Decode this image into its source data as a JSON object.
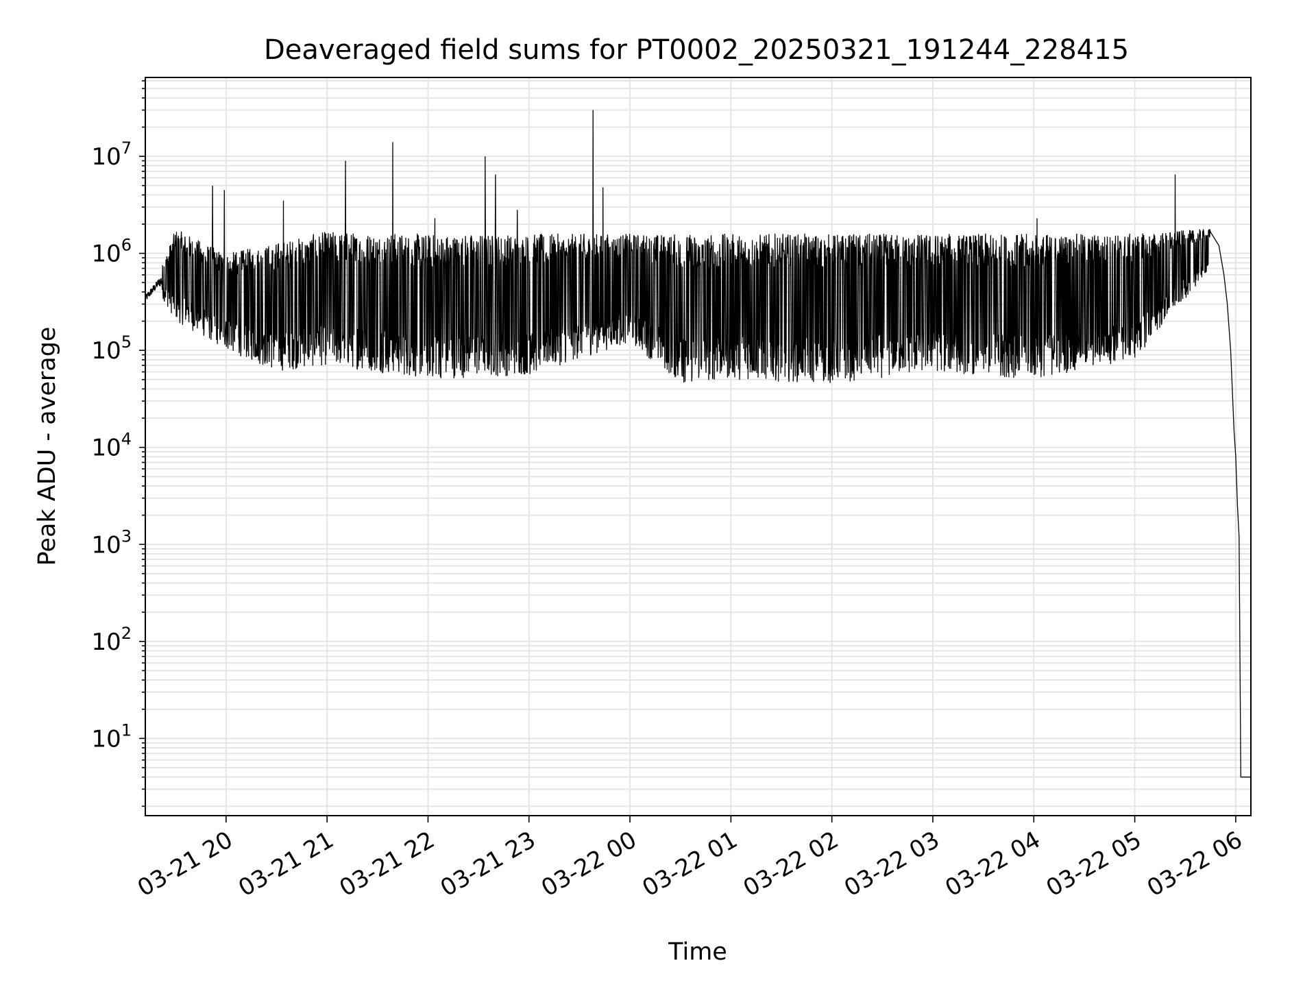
{
  "chart_data": {
    "type": "line",
    "title": "Deaveraged field sums for PT0002_20250321_191244_228415",
    "xlabel": "Time",
    "ylabel": "Peak ADU - average",
    "yscale": "log",
    "ylim": [
      1.6,
      65000000
    ],
    "xlim": [
      "03-21 19:12",
      "03-22 06:09"
    ],
    "grid": true,
    "line_color": "#000000",
    "grid_color": "#e5e5e5",
    "x_ticks": [
      {
        "t": "03-21 20:00",
        "label": "03-21 20"
      },
      {
        "t": "03-21 21:00",
        "label": "03-21 21"
      },
      {
        "t": "03-21 22:00",
        "label": "03-21 22"
      },
      {
        "t": "03-21 23:00",
        "label": "03-21 23"
      },
      {
        "t": "03-22 00:00",
        "label": "03-22 00"
      },
      {
        "t": "03-22 01:00",
        "label": "03-22 01"
      },
      {
        "t": "03-22 02:00",
        "label": "03-22 02"
      },
      {
        "t": "03-22 03:00",
        "label": "03-22 03"
      },
      {
        "t": "03-22 04:00",
        "label": "03-22 04"
      },
      {
        "t": "03-22 05:00",
        "label": "03-22 05"
      },
      {
        "t": "03-22 06:00",
        "label": "03-22 06"
      }
    ],
    "y_ticks": [
      {
        "value": 10,
        "base": "10",
        "exp": "1"
      },
      {
        "value": 100,
        "base": "10",
        "exp": "2"
      },
      {
        "value": 1000,
        "base": "10",
        "exp": "3"
      },
      {
        "value": 10000,
        "base": "10",
        "exp": "4"
      },
      {
        "value": 100000,
        "base": "10",
        "exp": "5"
      },
      {
        "value": 1000000,
        "base": "10",
        "exp": "6"
      },
      {
        "value": 10000000,
        "base": "10",
        "exp": "7"
      }
    ],
    "series": [
      {
        "style": "dense oscillating line",
        "envelope": [
          {
            "t": "03-21 19:12",
            "low": 280000,
            "high": 400000
          },
          {
            "t": "03-21 19:20",
            "low": 400000,
            "high": 600000
          },
          {
            "t": "03-21 19:30",
            "low": 200000,
            "high": 1800000
          },
          {
            "t": "03-21 20:00",
            "low": 100000,
            "high": 1000000
          },
          {
            "t": "03-21 20:30",
            "low": 60000,
            "high": 1300000
          },
          {
            "t": "03-21 21:00",
            "low": 70000,
            "high": 1700000
          },
          {
            "t": "03-21 22:00",
            "low": 50000,
            "high": 1600000
          },
          {
            "t": "03-21 23:00",
            "low": 55000,
            "high": 1600000
          },
          {
            "t": "03-22 00:00",
            "low": 120000,
            "high": 1600000
          },
          {
            "t": "03-22 00:30",
            "low": 45000,
            "high": 1600000
          },
          {
            "t": "03-22 01:00",
            "low": 50000,
            "high": 1600000
          },
          {
            "t": "03-22 02:00",
            "low": 45000,
            "high": 1600000
          },
          {
            "t": "03-22 03:00",
            "low": 60000,
            "high": 1600000
          },
          {
            "t": "03-22 04:00",
            "low": 50000,
            "high": 1600000
          },
          {
            "t": "03-22 05:00",
            "low": 80000,
            "high": 1600000
          },
          {
            "t": "03-22 05:45",
            "low": 700000,
            "high": 1800000
          }
        ],
        "spikes": [
          {
            "t": "03-21 19:52",
            "value": 5000000
          },
          {
            "t": "03-21 19:59",
            "value": 4500000
          },
          {
            "t": "03-21 20:34",
            "value": 3500000
          },
          {
            "t": "03-21 21:11",
            "value": 9000000
          },
          {
            "t": "03-21 21:39",
            "value": 14000000
          },
          {
            "t": "03-21 22:04",
            "value": 2300000
          },
          {
            "t": "03-21 22:34",
            "value": 10000000
          },
          {
            "t": "03-21 22:40",
            "value": 6500000
          },
          {
            "t": "03-21 22:53",
            "value": 2800000
          },
          {
            "t": "03-21 23:38",
            "value": 30000000
          },
          {
            "t": "03-21 23:44",
            "value": 4800000
          },
          {
            "t": "03-22 04:02",
            "value": 2300000
          },
          {
            "t": "03-22 05:24",
            "value": 6500000
          }
        ],
        "tail": [
          {
            "t": "03-22 05:50",
            "value": 1200000
          },
          {
            "t": "03-22 05:53",
            "value": 600000
          },
          {
            "t": "03-22 05:55",
            "value": 300000
          },
          {
            "t": "03-22 05:57",
            "value": 100000
          },
          {
            "t": "03-22 05:59",
            "value": 15000
          },
          {
            "t": "03-22 06:00",
            "value": 8000
          },
          {
            "t": "03-22 06:01",
            "value": 2500
          },
          {
            "t": "03-22 06:02",
            "value": 1200
          },
          {
            "t": "03-22 06:03",
            "value": 4
          },
          {
            "t": "03-22 06:09",
            "value": 4
          }
        ]
      }
    ]
  }
}
